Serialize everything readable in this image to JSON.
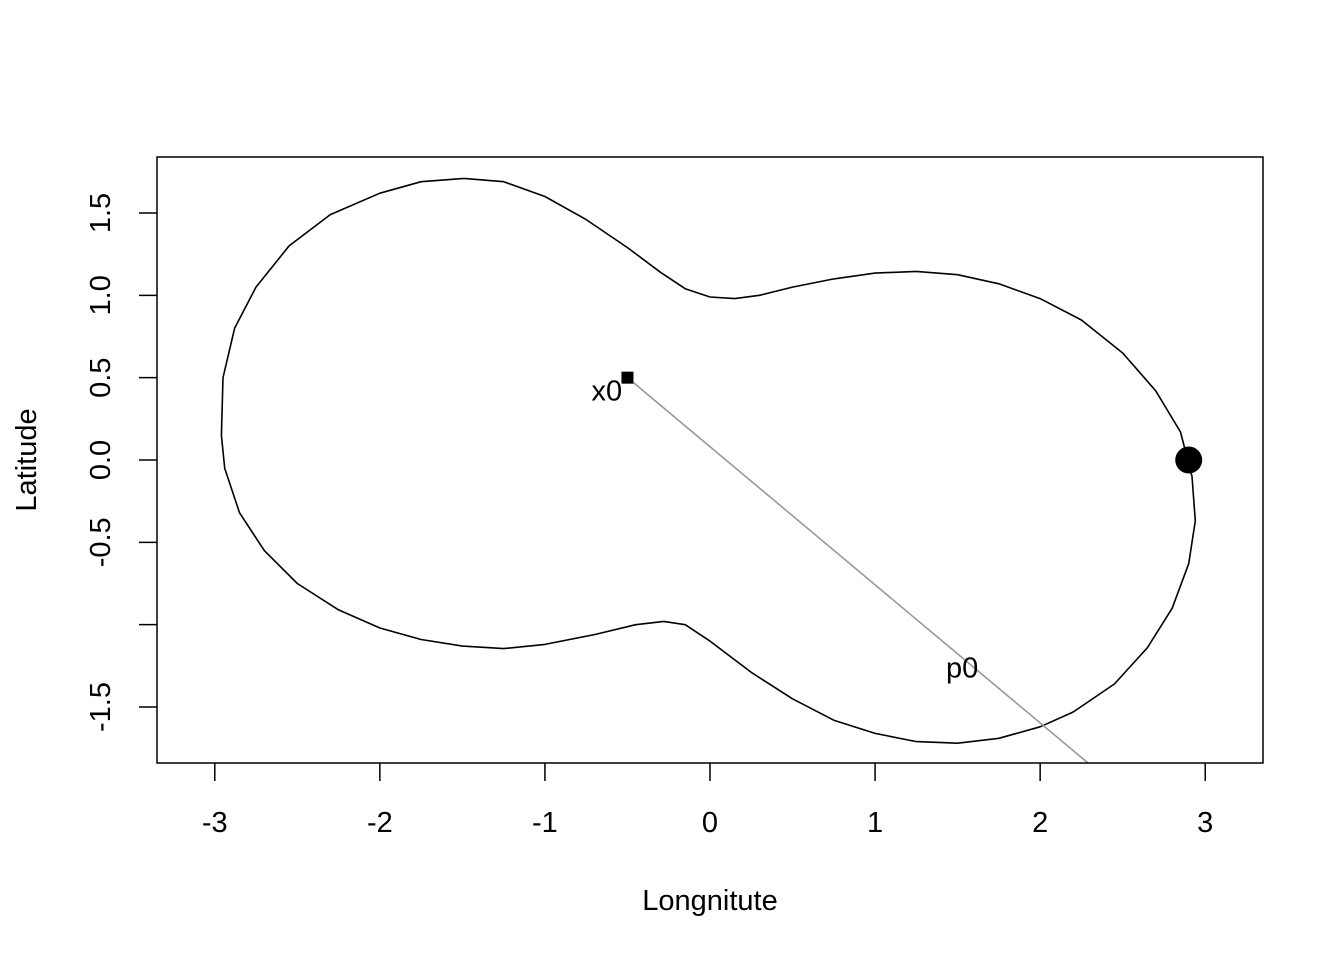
{
  "chart_data": {
    "type": "scatter",
    "xlabel": "Longnitute",
    "ylabel": "Latitude",
    "xlim": [
      -3.35,
      3.35
    ],
    "ylim": [
      -1.84,
      1.84
    ],
    "x_ticks": [
      -3,
      -2,
      -1,
      0,
      1,
      2,
      3
    ],
    "x_tick_labels": [
      "-3",
      "-2",
      "-1",
      "0",
      "1",
      "2",
      "3"
    ],
    "y_ticks": [
      -1.5,
      -1.0,
      -0.5,
      0.0,
      0.5,
      1.0,
      1.5
    ],
    "y_tick_labels": [
      "-1.5",
      "",
      "-0.5",
      "0.0",
      "0.5",
      "1.0",
      "1.5"
    ],
    "grid": false,
    "boundary_curve": [
      [
        -1.49,
        1.71
      ],
      [
        -1.25,
        1.69
      ],
      [
        -1.0,
        1.6
      ],
      [
        -0.75,
        1.46
      ],
      [
        -0.5,
        1.29
      ],
      [
        -0.3,
        1.14
      ],
      [
        -0.15,
        1.04
      ],
      [
        0.0,
        0.99
      ],
      [
        0.15,
        0.98
      ],
      [
        0.3,
        1.0
      ],
      [
        0.5,
        1.05
      ],
      [
        0.75,
        1.1
      ],
      [
        1.0,
        1.135
      ],
      [
        1.25,
        1.145
      ],
      [
        1.5,
        1.125
      ],
      [
        1.75,
        1.07
      ],
      [
        2.0,
        0.98
      ],
      [
        2.25,
        0.85
      ],
      [
        2.5,
        0.65
      ],
      [
        2.7,
        0.42
      ],
      [
        2.85,
        0.17
      ],
      [
        2.92,
        -0.1
      ],
      [
        2.94,
        -0.37
      ],
      [
        2.9,
        -0.63
      ],
      [
        2.8,
        -0.9
      ],
      [
        2.65,
        -1.14
      ],
      [
        2.45,
        -1.36
      ],
      [
        2.2,
        -1.53
      ],
      [
        2.0,
        -1.62
      ],
      [
        1.75,
        -1.69
      ],
      [
        1.5,
        -1.72
      ],
      [
        1.25,
        -1.71
      ],
      [
        1.0,
        -1.66
      ],
      [
        0.75,
        -1.58
      ],
      [
        0.5,
        -1.45
      ],
      [
        0.25,
        -1.29
      ],
      [
        0.0,
        -1.1
      ],
      [
        -0.15,
        -1.0
      ],
      [
        -0.28,
        -0.98
      ],
      [
        -0.45,
        -1.0
      ],
      [
        -0.7,
        -1.06
      ],
      [
        -1.0,
        -1.12
      ],
      [
        -1.25,
        -1.145
      ],
      [
        -1.5,
        -1.13
      ],
      [
        -1.75,
        -1.09
      ],
      [
        -2.0,
        -1.02
      ],
      [
        -2.25,
        -0.91
      ],
      [
        -2.5,
        -0.75
      ],
      [
        -2.7,
        -0.55
      ],
      [
        -2.85,
        -0.32
      ],
      [
        -2.94,
        -0.05
      ],
      [
        -2.96,
        0.15
      ],
      [
        -2.95,
        0.5
      ],
      [
        -2.88,
        0.8
      ],
      [
        -2.75,
        1.05
      ],
      [
        -2.55,
        1.3
      ],
      [
        -2.3,
        1.49
      ],
      [
        -2.0,
        1.62
      ],
      [
        -1.75,
        1.69
      ],
      [
        -1.49,
        1.71
      ]
    ],
    "segment": {
      "from": [
        -0.5,
        0.5
      ],
      "to": [
        2.29,
        -1.84
      ],
      "color": "#999999"
    },
    "points": [
      {
        "label": "x0",
        "x": -0.5,
        "y": 0.5,
        "marker": "square"
      },
      {
        "label": "",
        "x": 2.9,
        "y": 0.0,
        "marker": "circle"
      }
    ],
    "annotations": [
      {
        "text": "p0",
        "x": 1.43,
        "y": -1.32
      }
    ]
  }
}
